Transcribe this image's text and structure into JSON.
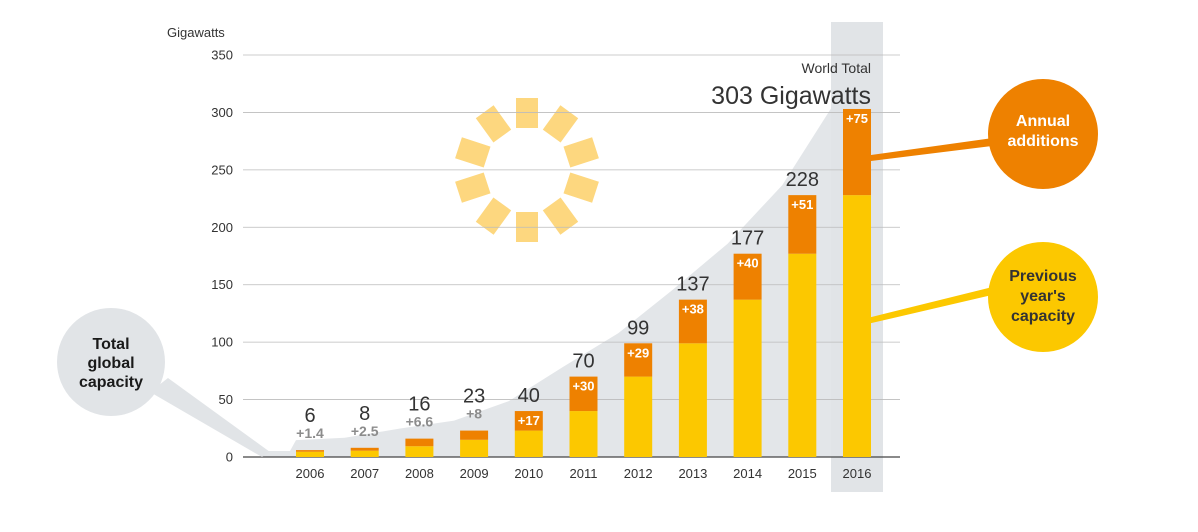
{
  "chart_data": {
    "type": "bar",
    "ylabel": "Gigawatts",
    "ylim": [
      0,
      350
    ],
    "yticks": [
      0,
      50,
      100,
      150,
      200,
      250,
      300,
      350
    ],
    "grid": true,
    "categories": [
      "2006",
      "2007",
      "2008",
      "2009",
      "2010",
      "2011",
      "2012",
      "2013",
      "2014",
      "2015",
      "2016"
    ],
    "series": [
      {
        "name": "Previous year's capacity",
        "values": [
          4.6,
          5.5,
          9.4,
          15,
          23,
          40,
          70,
          99,
          137,
          177,
          228
        ]
      },
      {
        "name": "Annual additions",
        "values": [
          1.4,
          2.5,
          6.6,
          8,
          17,
          30,
          29,
          38,
          40,
          51,
          75
        ]
      }
    ],
    "total_labels": [
      "6",
      "8",
      "16",
      "23",
      "40",
      "70",
      "99",
      "137",
      "177",
      "228",
      ""
    ],
    "addition_labels": [
      "+1.4",
      "+2.5",
      "+6.6",
      "+8",
      "+17",
      "+30",
      "+29",
      "+38",
      "+40",
      "+51",
      "+75"
    ],
    "highlight": {
      "category": "2016",
      "label": "World Total",
      "value_text": "303 Gigawatts"
    },
    "callouts": {
      "annual": [
        "Annual",
        "additions"
      ],
      "previous": [
        "Previous",
        "year's",
        "capacity"
      ],
      "total": [
        "Total",
        "global",
        "capacity"
      ]
    },
    "colors": {
      "previous": "#fcc800",
      "annual": "#ee8100",
      "highlight_band": "#e1e4e7",
      "area": "#e3e6e9",
      "sun": "#fdd77f",
      "total_bubble": "#e1e4e7"
    }
  }
}
